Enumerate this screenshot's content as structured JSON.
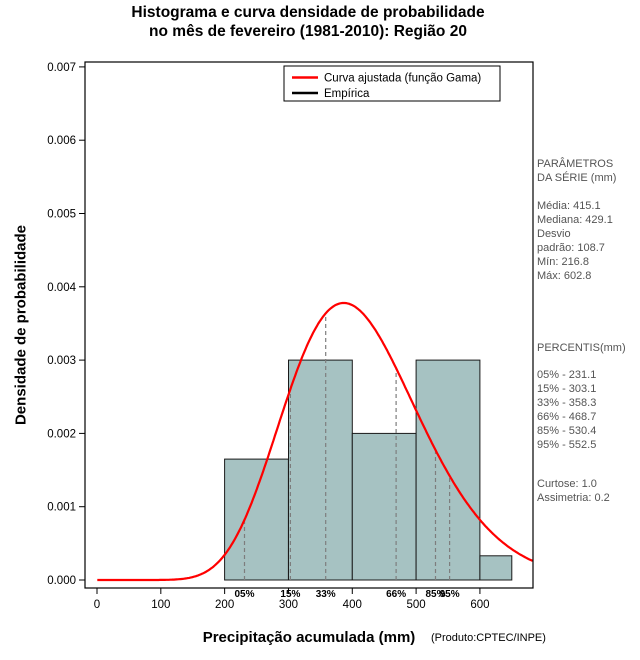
{
  "title": {
    "line1": "Histograma e curva densidade de probabilidade",
    "line2": "no mês de fevereiro (1981-2010): Região 20"
  },
  "footer": "(Produto:CPTEC/INPE)",
  "chart_data": {
    "type": "histogram+line",
    "title": "Histograma e curva densidade de probabilidade no mês de fevereiro (1981-2010): Região 20",
    "xlabel": "Precipitação acumulada (mm)",
    "ylabel": "Densidade de probabilidade",
    "xlim": [
      0,
      680
    ],
    "ylim": [
      0,
      0.007
    ],
    "x_ticks": [
      0,
      100,
      200,
      300,
      400,
      500,
      600
    ],
    "y_ticks": [
      0,
      0.001,
      0.002,
      0.003,
      0.004,
      0.005,
      0.006,
      0.007
    ],
    "grid": false,
    "legend_position": "top-center",
    "histogram": {
      "name": "Empírica",
      "bin_edges": [
        200,
        300,
        400,
        500,
        600,
        650
      ],
      "densities": [
        0.00165,
        0.003,
        0.002,
        0.003,
        0.00033
      ],
      "fill": "#a6c2c2",
      "border": "#1a1a1a"
    },
    "gamma": {
      "name": "Curva ajustada (função Gama)",
      "mean": 415.1,
      "sd": 108.7,
      "color": "#ff0000"
    },
    "percentiles": [
      {
        "label": "05%",
        "value": 231.1
      },
      {
        "label": "15%",
        "value": 303.1
      },
      {
        "label": "33%",
        "value": 358.3
      },
      {
        "label": "66%",
        "value": 468.7
      },
      {
        "label": "85%",
        "value": 530.4
      },
      {
        "label": "95%",
        "value": 552.5
      }
    ],
    "legend": [
      {
        "label": "Curva ajustada (função Gama)",
        "color": "#ff0000"
      },
      {
        "label": "Empírica",
        "color": "#000000"
      }
    ],
    "stats": {
      "media": 415.1,
      "mediana": 429.1,
      "desvio_padrao": 108.7,
      "min": 216.8,
      "max": 602.8,
      "curtose": 1.0,
      "assimetria": 0.2
    }
  },
  "side_panel": {
    "title_lines": [
      "PARÂMETROS",
      "DA SÉRIE (mm)"
    ],
    "param_lines": [
      "Média:  415.1",
      "Mediana:  429.1",
      "Desvio",
      "padrão:  108.7",
      "Mín:  216.8",
      "Máx:  602.8"
    ],
    "percentis_title": "PERCENTIS(mm)",
    "percentil_lines": [
      "05% -  231.1",
      "15% -  303.1",
      "33% -  358.3",
      "66% -  468.7",
      "85% -  530.4",
      "95% -  552.5"
    ],
    "extra_lines": [
      "Curtose:  1.0",
      "Assimetria:  0.2"
    ]
  }
}
